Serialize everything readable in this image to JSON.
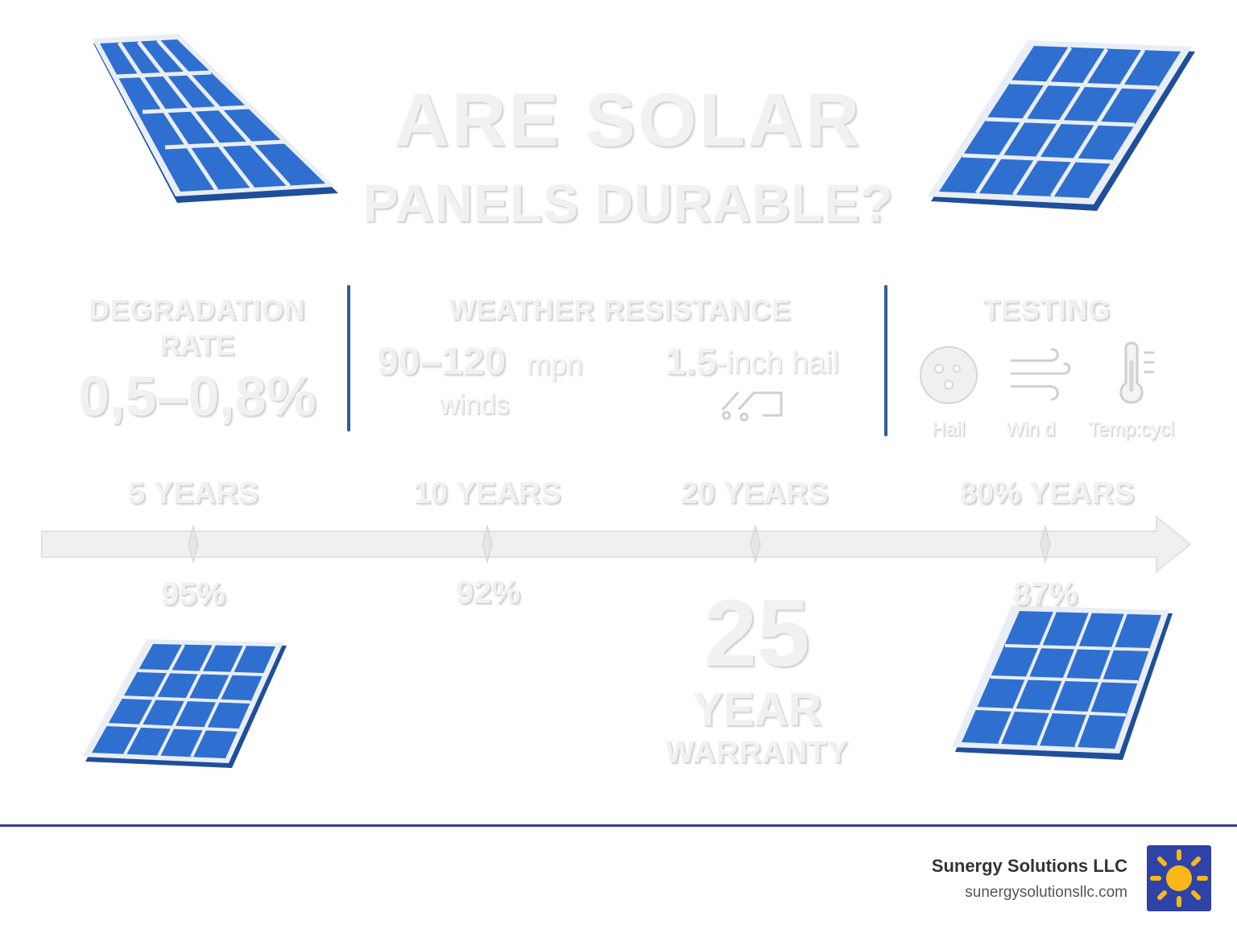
{
  "title": {
    "line1": "ARE SOLAR",
    "line2": "PANELS DURABLE?"
  },
  "degradation": {
    "heading1": "DEGRADATION",
    "heading2": "RATE",
    "value": "0,5–0,8%"
  },
  "weather": {
    "heading": "WEATHER RESISTANCE",
    "wind_number": "90–120",
    "wind_unit": "mpn",
    "wind_label": "winds",
    "hail_number": "1.5",
    "hail_label": "-inch hail"
  },
  "testing": {
    "heading": "TESTING",
    "items": [
      {
        "label": "Hail",
        "icon": "hail-icon"
      },
      {
        "label": "Win d",
        "icon": "wind-icon"
      },
      {
        "label": "Temp:cycl",
        "icon": "thermometer-icon"
      }
    ]
  },
  "timeline": {
    "points": [
      {
        "label": "5 YEARS",
        "value": "95%"
      },
      {
        "label": "10 YEARS",
        "value": "92%"
      },
      {
        "label": "20 YEARS",
        "value": ""
      },
      {
        "label": "80% YEARS",
        "value": "87%"
      }
    ]
  },
  "warranty": {
    "number": "25",
    "line1": "YEAR",
    "line2": "WARRANTY"
  },
  "footer": {
    "company": "Sunergy Solutions LLC",
    "url": "sunergysolutionsllc.com"
  },
  "colors": {
    "panel_blue": "#2f6fd0",
    "panel_edge": "#3b7bd6",
    "divider_blue": "#2f5d9a",
    "footer_rule": "#2f3f8f",
    "logo_bg": "#2f42a8",
    "sun_yellow": "#f9b818"
  }
}
